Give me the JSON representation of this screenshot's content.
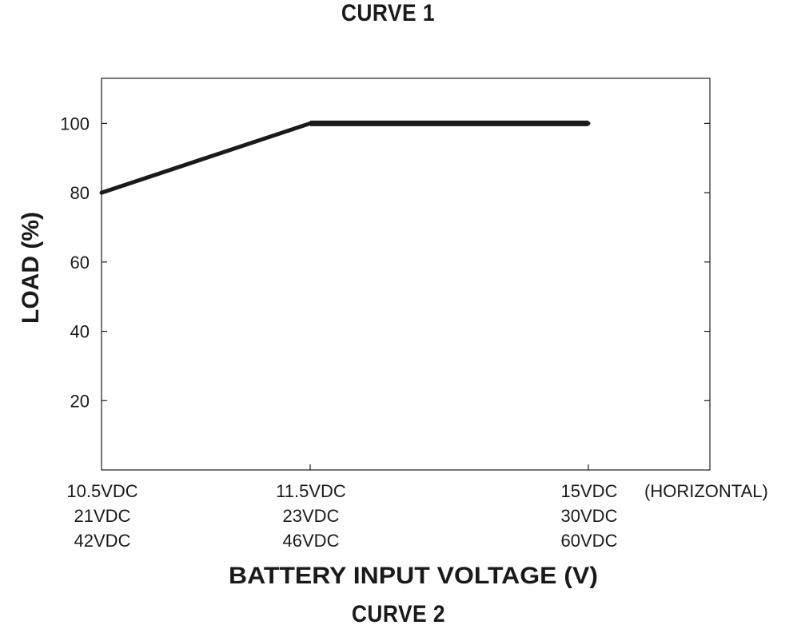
{
  "titles": {
    "top": "CURVE 1",
    "bottom": "CURVE 2"
  },
  "chart_data": {
    "type": "line",
    "title": "CURVE 1",
    "xlabel": "BATTERY INPUT VOLTAGE (V)",
    "ylabel": "LOAD (%)",
    "x_categories": [
      {
        "key": "v1",
        "lines": [
          "10.5VDC",
          "21VDC",
          "42VDC"
        ]
      },
      {
        "key": "v2",
        "lines": [
          "11.5VDC",
          "23VDC",
          "46VDC"
        ]
      },
      {
        "key": "v3",
        "lines": [
          "15VDC",
          "30VDC",
          "60VDC"
        ]
      }
    ],
    "x_note": "(HORIZONTAL)",
    "y_ticks": [
      20,
      40,
      60,
      80,
      100
    ],
    "ylim": [
      0,
      113
    ],
    "grid": false,
    "series": [
      {
        "points": [
          {
            "x": "10.5VDC",
            "y": 80
          },
          {
            "x": "11.5VDC",
            "y": 100
          },
          {
            "x": "15VDC",
            "y": 100
          }
        ]
      }
    ],
    "colors": {
      "line": "#1a1a1a",
      "frame": "#1a1a1a"
    }
  }
}
